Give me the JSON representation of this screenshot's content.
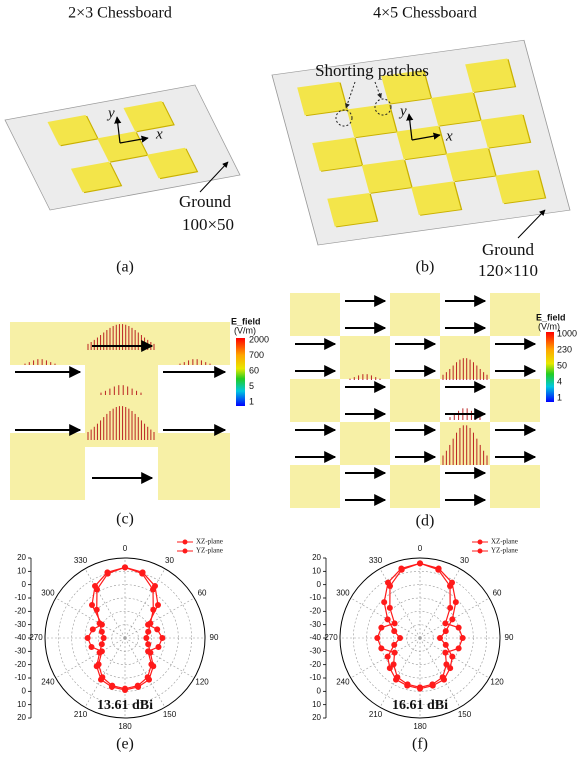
{
  "titles": [
    "2×3 Chessboard",
    "4×5 Chessboard"
  ],
  "panel_a": {
    "label": "(a)",
    "axis_x": "x",
    "axis_y": "y",
    "ground": "Ground",
    "ground_size": "100×50"
  },
  "panel_b": {
    "label": "(b)",
    "annotation": "Shorting patches",
    "axis_x": "x",
    "axis_y": "y",
    "ground": "Ground",
    "ground_size": "120×110"
  },
  "panel_c": {
    "label": "(c)",
    "colorbar_title": "E_field",
    "colorbar_unit": "(V/m)",
    "colorbar_ticks": [
      2000,
      700,
      60,
      5,
      1
    ]
  },
  "panel_d": {
    "label": "(d)",
    "colorbar_title": "E_field",
    "colorbar_unit": "(V/m)",
    "colorbar_ticks": [
      1000,
      230,
      50,
      4,
      1
    ]
  },
  "chart_data": [
    {
      "type": "polar",
      "label": "(e)",
      "annotation": "13.61 dBi",
      "theta": [
        0,
        15,
        30,
        45,
        60,
        75,
        90,
        105,
        120,
        135,
        150,
        165,
        180,
        195,
        210,
        225,
        240,
        255,
        270,
        285,
        300,
        315,
        330,
        345
      ],
      "series": [
        {
          "name": "XZ-plane",
          "color": "#ff1a1a",
          "values": [
            13,
            10,
            2,
            -10,
            -18,
            -22,
            -24,
            -22,
            -18,
            -10,
            -4,
            -2,
            -1,
            -2,
            -4,
            -10,
            -18,
            -22,
            -24,
            -22,
            -18,
            -10,
            2,
            10
          ]
        },
        {
          "name": "YZ-plane",
          "color": "#ff1a1a",
          "values": [
            13,
            11,
            5,
            -5,
            -20,
            -15,
            -12,
            -14,
            -20,
            -12,
            -6,
            -3,
            -2,
            -3,
            -6,
            -12,
            -20,
            -14,
            -12,
            -15,
            -20,
            -5,
            5,
            11
          ]
        }
      ],
      "rlim": [
        -40,
        20
      ],
      "rticks": [
        -40,
        -30,
        -20,
        -10,
        0,
        10,
        20
      ],
      "thetaticks": [
        0,
        30,
        60,
        90,
        120,
        150,
        180,
        210,
        240,
        270,
        300,
        330
      ],
      "grid": true
    },
    {
      "type": "polar",
      "label": "(f)",
      "annotation": "16.61 dBi",
      "theta": [
        0,
        15,
        30,
        45,
        60,
        75,
        90,
        105,
        120,
        135,
        150,
        165,
        180,
        195,
        210,
        225,
        240,
        255,
        270,
        285,
        300,
        315,
        330,
        345
      ],
      "series": [
        {
          "name": "XZ-plane",
          "color": "#ff1a1a",
          "values": [
            16,
            14,
            8,
            -2,
            -12,
            -20,
            -25,
            -20,
            -12,
            -8,
            -4,
            -3,
            -2,
            -3,
            -4,
            -8,
            -12,
            -20,
            -25,
            -20,
            -12,
            -2,
            8,
            14
          ]
        },
        {
          "name": "YZ-plane",
          "color": "#ff1a1a",
          "values": [
            16,
            13,
            5,
            -8,
            -18,
            -10,
            -8,
            -10,
            -18,
            -12,
            -6,
            -4,
            -3,
            -4,
            -6,
            -12,
            -18,
            -10,
            -8,
            -10,
            -18,
            -8,
            5,
            13
          ]
        }
      ],
      "rlim": [
        -40,
        20
      ],
      "rticks": [
        -40,
        -30,
        -20,
        -10,
        0,
        10,
        20
      ],
      "thetaticks": [
        0,
        30,
        60,
        90,
        120,
        150,
        180,
        210,
        240,
        270,
        300,
        330
      ],
      "grid": true
    }
  ]
}
